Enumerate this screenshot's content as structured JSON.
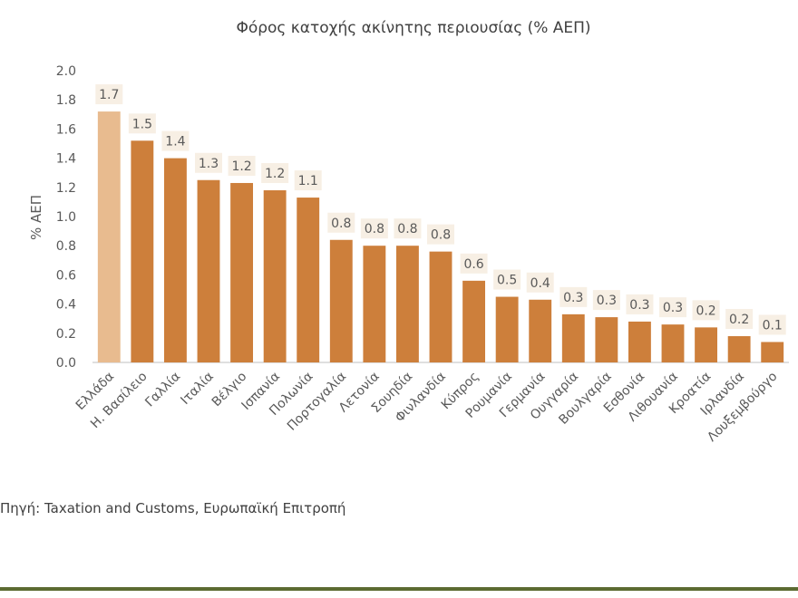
{
  "chart_data": {
    "type": "bar",
    "title": "Φόρος κατοχής ακίνητης περιουσίας (% ΑΕΠ)",
    "xlabel": "",
    "ylabel": "% ΑΕΠ",
    "ylim": [
      0,
      2.0
    ],
    "yticks": [
      "0.0",
      "0.2",
      "0.4",
      "0.6",
      "0.8",
      "1.0",
      "1.2",
      "1.4",
      "1.6",
      "1.8",
      "2.0"
    ],
    "grid": false,
    "legend": "none",
    "categories": [
      "Ελλάδα",
      "Η. Βασίλειο",
      "Γαλλία",
      "Ιταλία",
      "Βέλγιο",
      "Ισπανία",
      "Πολωνία",
      "Πορτογαλία",
      "Λετονία",
      "Σουηδία",
      "Φινλανδία",
      "Κύπρος",
      "Ρουμανία",
      "Γερμανία",
      "Ουγγαρία",
      "Βουλγαρία",
      "Εσθονία",
      "Λιθουανία",
      "Κροατία",
      "Ιρλανδία",
      "Λουξεμβούργο"
    ],
    "values": [
      1.72,
      1.52,
      1.4,
      1.25,
      1.23,
      1.18,
      1.13,
      0.84,
      0.8,
      0.8,
      0.76,
      0.56,
      0.45,
      0.43,
      0.33,
      0.31,
      0.28,
      0.26,
      0.24,
      0.18,
      0.14
    ],
    "labels": [
      "1.7",
      "1.5",
      "1.4",
      "1.3",
      "1.2",
      "1.2",
      "1.1",
      "0.8",
      "0.8",
      "0.8",
      "0.8",
      "0.6",
      "0.5",
      "0.4",
      "0.3",
      "0.3",
      "0.3",
      "0.3",
      "0.2",
      "0.2",
      "0.1"
    ],
    "colors": {
      "bar": "#cd7f3b",
      "highlight": "#e8bb8f",
      "label_bg": "#f7efe4",
      "axis": "#bfbfbf"
    }
  },
  "source_text": "Πηγή: Taxation and Customs, Ευρωπαϊκή Επιτροπή"
}
